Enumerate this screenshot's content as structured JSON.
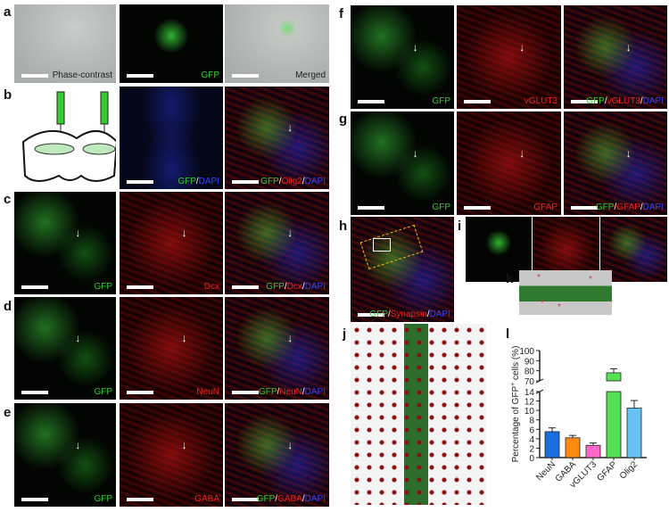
{
  "panels": {
    "a": {
      "letter": "a",
      "images": [
        {
          "caption": [
            {
              "t": "Phase-contrast",
              "c": "#222222"
            }
          ]
        },
        {
          "caption": [
            {
              "t": "GFP",
              "c": "#33cc33"
            }
          ]
        },
        {
          "caption": [
            {
              "t": "Merged",
              "c": "#222222"
            }
          ]
        }
      ]
    },
    "b": {
      "letter": "b",
      "images": [
        {
          "caption": []
        },
        {
          "caption": [
            {
              "t": "GFP",
              "c": "#33cc33"
            },
            {
              "t": "/",
              "c": "#ffffff"
            },
            {
              "t": "DAPI",
              "c": "#3344ff"
            }
          ]
        },
        {
          "caption": [
            {
              "t": "GFP",
              "c": "#33cc33"
            },
            {
              "t": "/",
              "c": "#ffffff"
            },
            {
              "t": "Olig2",
              "c": "#ee2222"
            },
            {
              "t": "/",
              "c": "#ffffff"
            },
            {
              "t": "DAPI",
              "c": "#3344ff"
            }
          ]
        }
      ]
    },
    "c": {
      "letter": "c",
      "images": [
        {
          "caption": [
            {
              "t": "GFP",
              "c": "#33cc33"
            }
          ]
        },
        {
          "caption": [
            {
              "t": "Dcx",
              "c": "#ee2222"
            }
          ]
        },
        {
          "caption": [
            {
              "t": "GFP",
              "c": "#33cc33"
            },
            {
              "t": "/",
              "c": "#ffffff"
            },
            {
              "t": "Dcx",
              "c": "#ee2222"
            },
            {
              "t": "/",
              "c": "#ffffff"
            },
            {
              "t": "DAPI",
              "c": "#3344ff"
            }
          ]
        }
      ]
    },
    "d": {
      "letter": "d",
      "images": [
        {
          "caption": [
            {
              "t": "GFP",
              "c": "#33cc33"
            }
          ]
        },
        {
          "caption": [
            {
              "t": "NeuN",
              "c": "#ee2222"
            }
          ]
        },
        {
          "caption": [
            {
              "t": "GFP",
              "c": "#33cc33"
            },
            {
              "t": "/",
              "c": "#ffffff"
            },
            {
              "t": "NeuN",
              "c": "#ee2222"
            },
            {
              "t": "/",
              "c": "#ffffff"
            },
            {
              "t": "DAPI",
              "c": "#3344ff"
            }
          ]
        }
      ]
    },
    "e": {
      "letter": "e",
      "images": [
        {
          "caption": [
            {
              "t": "GFP",
              "c": "#33cc33"
            }
          ]
        },
        {
          "caption": [
            {
              "t": "GABA",
              "c": "#ee2222"
            }
          ]
        },
        {
          "caption": [
            {
              "t": "GFP",
              "c": "#33cc33"
            },
            {
              "t": "/",
              "c": "#ffffff"
            },
            {
              "t": "GABA",
              "c": "#ee2222"
            },
            {
              "t": "/",
              "c": "#ffffff"
            },
            {
              "t": "DAPI",
              "c": "#3344ff"
            }
          ]
        }
      ]
    },
    "f": {
      "letter": "f",
      "images": [
        {
          "caption": [
            {
              "t": "GFP",
              "c": "#33cc33"
            }
          ]
        },
        {
          "caption": [
            {
              "t": "vGLUT3",
              "c": "#ee2222"
            }
          ]
        },
        {
          "caption": [
            {
              "t": "GFP",
              "c": "#33cc33"
            },
            {
              "t": "/",
              "c": "#ffffff"
            },
            {
              "t": "vGLUT3",
              "c": "#ee2222"
            },
            {
              "t": "/",
              "c": "#ffffff"
            },
            {
              "t": "DAPI",
              "c": "#3344ff"
            }
          ]
        }
      ]
    },
    "g": {
      "letter": "g",
      "images": [
        {
          "caption": [
            {
              "t": "GFP",
              "c": "#33cc33"
            }
          ]
        },
        {
          "caption": [
            {
              "t": "GFAP",
              "c": "#ee2222"
            }
          ]
        },
        {
          "caption": [
            {
              "t": "GFP",
              "c": "#33cc33"
            },
            {
              "t": "/",
              "c": "#ffffff"
            },
            {
              "t": "GFAP",
              "c": "#ee2222"
            },
            {
              "t": "/",
              "c": "#ffffff"
            },
            {
              "t": "DAPI",
              "c": "#3344ff"
            }
          ]
        }
      ]
    },
    "h": {
      "letter": "h",
      "images": [
        {
          "caption": [
            {
              "t": "GFP",
              "c": "#33cc33"
            },
            {
              "t": "/",
              "c": "#ffffff"
            },
            {
              "t": "Synapsin",
              "c": "#ee2222"
            },
            {
              "t": "/",
              "c": "#ffffff"
            },
            {
              "t": "DAPI",
              "c": "#3344ff"
            }
          ]
        }
      ]
    },
    "i": {
      "letter": "i",
      "images": [
        {
          "caption": []
        },
        {
          "caption": []
        },
        {
          "caption": []
        }
      ]
    },
    "j": {
      "letter": "j",
      "images": [
        {
          "caption": []
        }
      ]
    },
    "k": {
      "letter": "k",
      "images": [
        {
          "caption": []
        }
      ]
    },
    "l": {
      "letter": "l"
    }
  },
  "chart_data": {
    "type": "bar",
    "categories": [
      "NeuN",
      "GABA",
      "vGLUT3",
      "GFAP",
      "Olig2"
    ],
    "values": [
      5.5,
      4.2,
      2.6,
      78,
      10.5
    ],
    "errors": [
      0.8,
      0.5,
      0.5,
      4,
      1.6
    ],
    "colors": [
      "#1a6fe0",
      "#ff8a10",
      "#ff66cc",
      "#55e055",
      "#66c2f5"
    ],
    "ylabel_parts": [
      "Percentage of GFP",
      "+",
      " cells (%)"
    ],
    "yticks_lower": [
      "0",
      "2",
      "4",
      "6",
      "8",
      "10",
      "12",
      "14"
    ],
    "yticks_upper": [
      "70",
      "80",
      "90",
      "100"
    ],
    "ylim": [
      0,
      100
    ],
    "axis_break": [
      14,
      70
    ],
    "grid": false
  }
}
